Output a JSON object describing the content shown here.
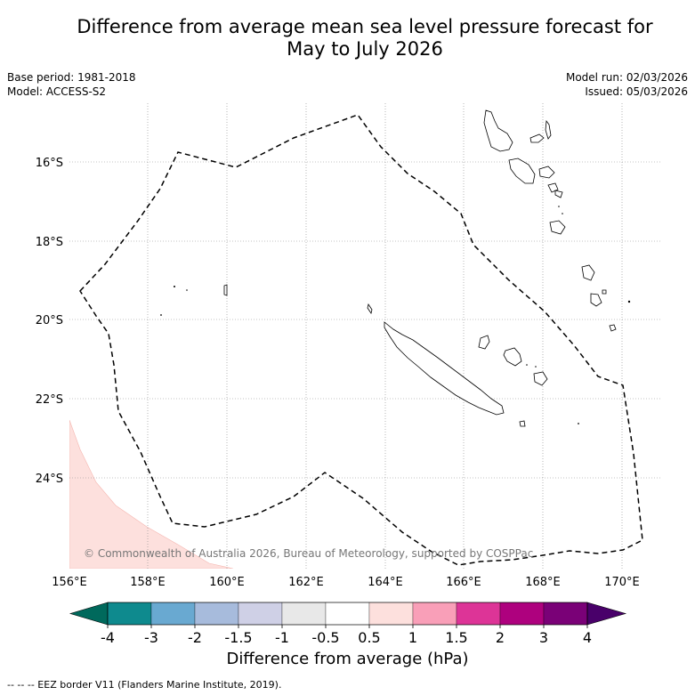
{
  "title": {
    "line1": "Difference from average mean sea level pressure forecast for",
    "line2": "May to July 2026"
  },
  "meta": {
    "base_period": "Base period: 1981-2018",
    "model": "Model: ACCESS-S2",
    "model_run": "Model run: 02/03/2026",
    "issued": "Issued: 05/03/2026"
  },
  "map": {
    "lat_labels": [
      "16°S",
      "18°S",
      "20°S",
      "22°S",
      "24°S"
    ],
    "lon_labels": [
      "156°E",
      "158°E",
      "160°E",
      "162°E",
      "164°E",
      "166°E",
      "168°E",
      "170°E"
    ],
    "extent": {
      "lon_min": 156,
      "lon_max": 171,
      "lat_north": -14.5,
      "lat_south": -26.0
    },
    "anomaly_region_class": "0.5 to 1",
    "copyright": "© Commonwealth of Australia 2026, Bureau of Meteorology, supported by COSPPac"
  },
  "colorbar": {
    "ticks": [
      "-4",
      "-3",
      "-2",
      "-1.5",
      "-1",
      "-0.5",
      "0.5",
      "1",
      "1.5",
      "2",
      "3",
      "4"
    ],
    "colors": [
      "#0e8a8e",
      "#69a9d1",
      "#a7bbdc",
      "#cfd0e6",
      "#e8e8e8",
      "#ffffff",
      "#fde0dd",
      "#f99fb8",
      "#dd3497",
      "#ae017e",
      "#7a0177"
    ],
    "under_color": "#00695c",
    "over_color": "#49006a",
    "label": "Difference from average (hPa)"
  },
  "footnote": "-- -- -- EEZ border V11 (Flanders Marine Institute, 2019)."
}
